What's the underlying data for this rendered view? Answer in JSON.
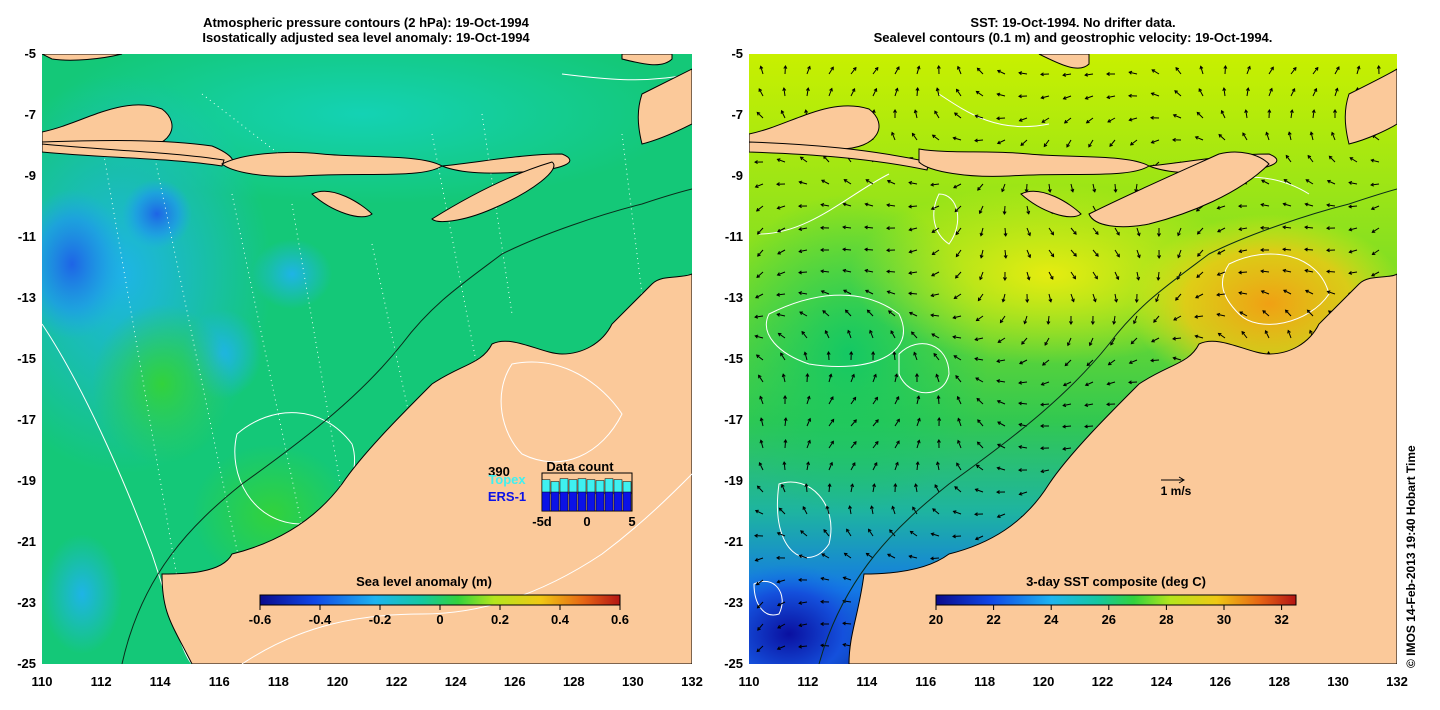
{
  "left_panel": {
    "title_line1": "Atmospheric pressure contours (2 hPa): 19-Oct-1994",
    "title_line2": "Isostatically adjusted sea level anomaly: 19-Oct-1994",
    "colorbar": {
      "label": "Sea level anomaly (m)",
      "ticks": [
        "-0.6",
        "-0.4",
        "-0.2",
        "0",
        "0.2",
        "0.4",
        "0.6"
      ],
      "range": [
        -0.6,
        0.6
      ]
    },
    "data_count": {
      "title": "Data count",
      "max_value": "390",
      "series1": "Topex",
      "series2": "ERS-1",
      "x_ticks": [
        "-5d",
        "0",
        "5"
      ],
      "topex_color": "#3ff0f0",
      "ers1_color": "#0b12e6"
    }
  },
  "right_panel": {
    "title_line1": "SST: 19-Oct-1994. No drifter data.",
    "title_line2": "Sealevel contours (0.1 m) and geostrophic velocity: 19-Oct-1994.",
    "colorbar": {
      "label": "3-day SST composite (deg C)",
      "ticks": [
        "20",
        "22",
        "24",
        "26",
        "28",
        "30",
        "32"
      ],
      "range": [
        20,
        32.5
      ]
    },
    "velocity_scale": "1 m/s"
  },
  "axes": {
    "x_ticks": [
      "110",
      "112",
      "114",
      "116",
      "118",
      "120",
      "122",
      "124",
      "126",
      "128",
      "130",
      "132"
    ],
    "y_ticks": [
      "-5",
      "-7",
      "-9",
      "-11",
      "-13",
      "-15",
      "-17",
      "-19",
      "-21",
      "-23",
      "-25"
    ],
    "lon_range": [
      110,
      132
    ],
    "lat_range": [
      -25,
      -5
    ]
  },
  "credit": "© IMOS 14-Feb-2013 19:40 Hobart Time",
  "colors": {
    "land": "#fbc99a",
    "sla_ocean": "#14c878",
    "sst_ocean": "#c8f000"
  }
}
